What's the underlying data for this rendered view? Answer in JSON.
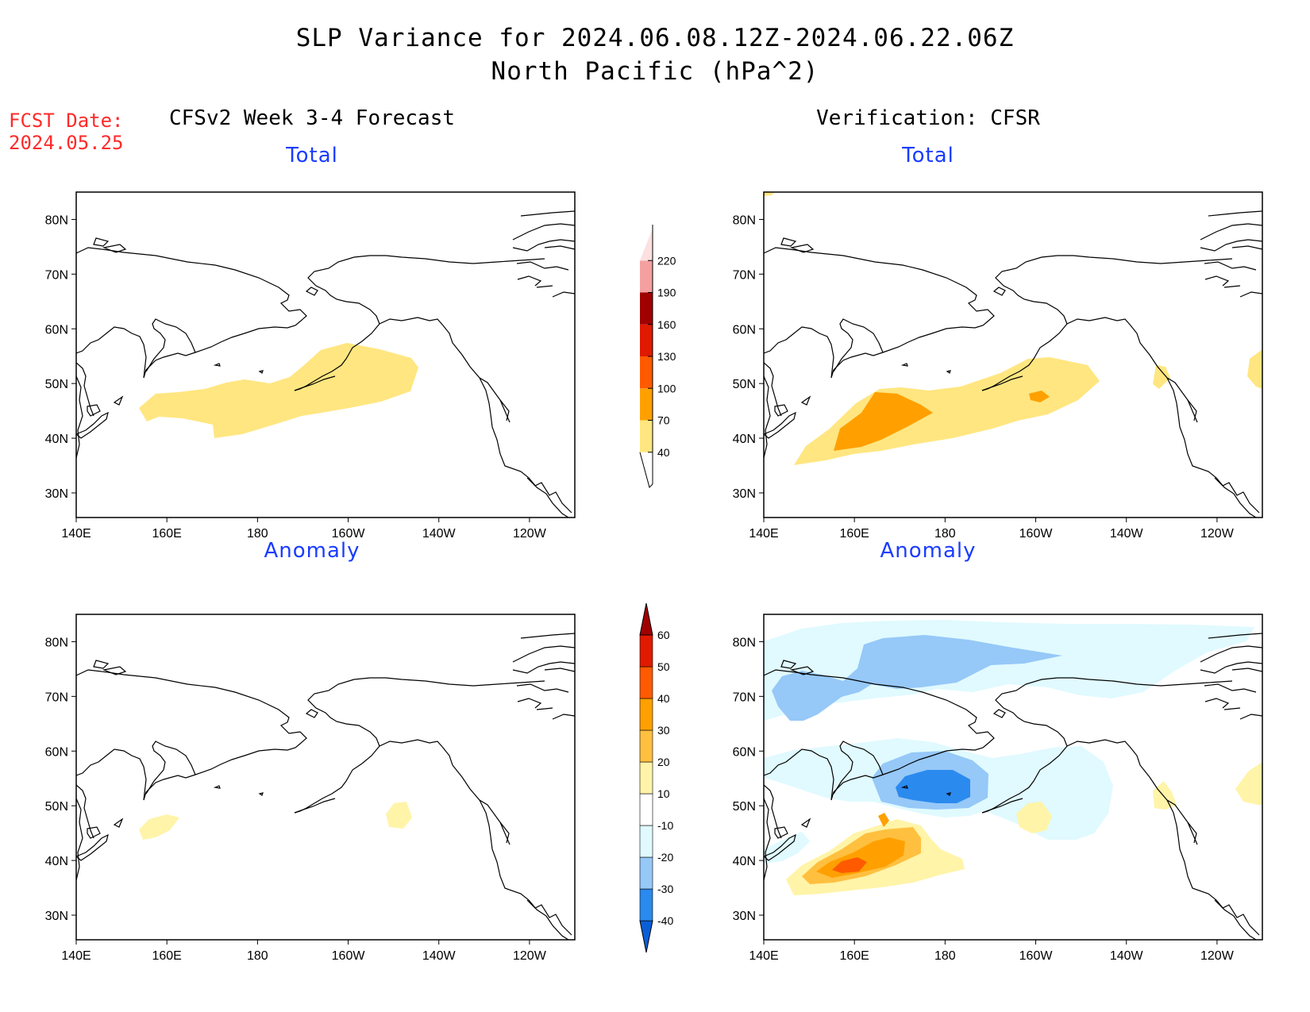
{
  "header": {
    "title_line1": "SLP Variance for 2024.06.08.12Z-2024.06.22.06Z",
    "title_line2": "North Pacific (hPa^2)"
  },
  "forecast_date": {
    "label": "FCST Date:",
    "value": "2024.05.25"
  },
  "columns": [
    {
      "title": "CFSv2 Week 3-4 Forecast"
    },
    {
      "title": "Verification: CFSR"
    }
  ],
  "panels": [
    {
      "id": "fcst-total",
      "title": "Total"
    },
    {
      "id": "verif-total",
      "title": "Total"
    },
    {
      "id": "fcst-anomaly",
      "title": "Anomaly"
    },
    {
      "id": "verif-anomaly",
      "title": "Anomaly"
    }
  ],
  "axes": {
    "lon_labels": [
      "140E",
      "160E",
      "180",
      "160W",
      "140W",
      "120W"
    ],
    "lat_labels": [
      "30N",
      "40N",
      "50N",
      "60N",
      "70N",
      "80N"
    ]
  },
  "colorbars": {
    "total": {
      "levels": [
        "40",
        "70",
        "100",
        "130",
        "160",
        "190",
        "220"
      ],
      "colors": [
        "#ffe680",
        "#ffa000",
        "#ff5a00",
        "#e01a00",
        "#a00000",
        "#f4a0a0",
        "#fde0e0"
      ]
    },
    "anomaly": {
      "levels": [
        "-40",
        "-30",
        "-20",
        "-10",
        "10",
        "20",
        "30",
        "40",
        "50",
        "60"
      ],
      "colors": [
        "#0a5fd8",
        "#2a8aee",
        "#96c8f8",
        "#e0faff",
        "#ffffff",
        "#fff4a8",
        "#ffc040",
        "#ffa000",
        "#ff5a00",
        "#e01a00",
        "#a00000"
      ]
    }
  }
}
